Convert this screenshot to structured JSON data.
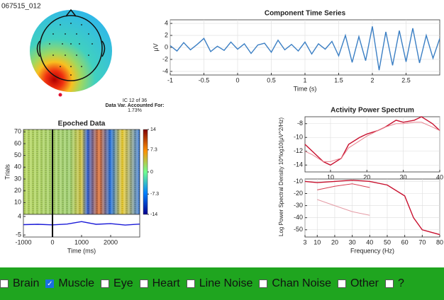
{
  "window": {
    "title": "067515_012"
  },
  "ic_info": {
    "lines": [
      "IC 12 of 36",
      "Data Var. Accounted For:",
      "1.73%"
    ]
  },
  "chart_data": [
    {
      "type": "line",
      "title": "Component Time Series",
      "xlabel": "Time (s)",
      "ylabel": "μV",
      "xlim": [
        -1,
        3
      ],
      "xticks": [
        -1,
        -0.5,
        0,
        0.5,
        1,
        1.5,
        2,
        2.5
      ],
      "ylim": [
        -4.6,
        4.6
      ],
      "yticks": [
        -4,
        -2,
        0,
        2,
        4
      ],
      "grid": true,
      "x": [
        -1,
        -0.9,
        -0.8,
        -0.7,
        -0.6,
        -0.5,
        -0.4,
        -0.3,
        -0.2,
        -0.1,
        0,
        0.1,
        0.2,
        0.3,
        0.4,
        0.5,
        0.6,
        0.7,
        0.8,
        0.9,
        1,
        1.1,
        1.2,
        1.3,
        1.4,
        1.5,
        1.6,
        1.7,
        1.8,
        1.9,
        2,
        2.1,
        2.2,
        2.3,
        2.4,
        2.5,
        2.6,
        2.7,
        2.8,
        2.9,
        3
      ],
      "series": [
        {
          "color": "#3b7fc4",
          "values": [
            0.3,
            -0.6,
            0.8,
            -0.4,
            0.5,
            1.5,
            -0.7,
            0.2,
            -0.5,
            0.9,
            -0.3,
            0.6,
            -1.0,
            0.4,
            0.7,
            -0.8,
            1.2,
            -0.4,
            0.5,
            -0.6,
            0.9,
            -1.1,
            0.6,
            -0.3,
            1.0,
            -1.4,
            2.0,
            -2.5,
            1.8,
            -2.2,
            3.5,
            -3.8,
            2.6,
            -3.0,
            2.8,
            -2.4,
            3.2,
            -2.6,
            2.0,
            -1.8,
            1.5
          ]
        }
      ]
    },
    {
      "type": "heatmap",
      "title": "Epoched Data",
      "ylabel": "Trials",
      "ylim": [
        0,
        72
      ],
      "yticks": [
        10,
        20,
        30,
        40,
        50,
        60,
        70
      ],
      "clim": [
        -14,
        14
      ],
      "cticks": [
        14,
        7.3,
        0,
        -7.3,
        -14
      ]
    },
    {
      "type": "line",
      "xlabel": "Time (ms)",
      "xlim": [
        -1000,
        3000
      ],
      "xticks": [
        -1000,
        0,
        1000,
        2000
      ],
      "ylim": [
        -6,
        5
      ],
      "yticks": [
        -5,
        4
      ],
      "x": [
        -1000,
        -500,
        0,
        500,
        1000,
        1500,
        2000,
        2500,
        3000
      ],
      "series": [
        {
          "color": "#1a1ad8",
          "values": [
            0,
            0.2,
            -0.1,
            0.3,
            1.5,
            0.2,
            0.5,
            -0.2,
            0.3
          ]
        }
      ]
    },
    {
      "type": "line",
      "title": "Activity Power Spectrum",
      "xlim": [
        3,
        40
      ],
      "xticks": [
        10,
        20,
        30,
        40
      ],
      "ylim": [
        -15,
        -7
      ],
      "yticks": [
        -8,
        -10,
        -12,
        -14
      ],
      "grid": true,
      "x": [
        3,
        5,
        8,
        10,
        13,
        15,
        18,
        20,
        23,
        25,
        28,
        30,
        33,
        35,
        38,
        40
      ],
      "series": [
        {
          "color": "#c8102e",
          "values": [
            -11,
            -12,
            -13.5,
            -14,
            -13,
            -11,
            -10,
            -9.5,
            -9,
            -8.5,
            -7.5,
            -7.8,
            -7.5,
            -7,
            -8,
            -9
          ]
        },
        {
          "color": "#e8838f",
          "values": [
            -12,
            -12.5,
            -13.5,
            -13.5,
            -13,
            -11.5,
            -10.5,
            -9.8,
            -9,
            -8.5,
            -8,
            -8,
            -7.8,
            -7.8,
            -8.5,
            -9
          ]
        }
      ]
    },
    {
      "type": "line",
      "xlabel": "Frequency (Hz)",
      "ylabel": "Log Power Spectral Density 10*log10(μV^2/Hz)",
      "xlim": [
        3,
        80
      ],
      "xticks": [
        3,
        10,
        20,
        30,
        40,
        50,
        60,
        70,
        80
      ],
      "ylim": [
        -56,
        -8
      ],
      "yticks": [
        -10,
        -20,
        -30,
        -40,
        -50
      ],
      "grid": true,
      "series": [
        {
          "color": "#c8102e",
          "x": [
            3,
            10,
            20,
            30,
            40,
            50,
            60,
            65,
            70,
            75,
            80
          ],
          "values": [
            -10,
            -11,
            -10,
            -9,
            -10,
            -13,
            -22,
            -40,
            -50,
            -52,
            -54
          ]
        },
        {
          "color": "#d83a4f",
          "x": [
            10,
            20,
            30,
            40
          ],
          "values": [
            -17,
            -14,
            -12,
            -15
          ]
        },
        {
          "color": "#e49aa4",
          "x": [
            10,
            20,
            30,
            40
          ],
          "values": [
            -25,
            -30,
            -35,
            -38
          ]
        }
      ]
    }
  ],
  "labels": {
    "checkboxes": [
      {
        "label": "Brain",
        "checked": false
      },
      {
        "label": "Muscle",
        "checked": true
      },
      {
        "label": "Eye",
        "checked": false
      },
      {
        "label": "Heart",
        "checked": false
      },
      {
        "label": "Line Noise",
        "checked": false
      },
      {
        "label": "Chan Noise",
        "checked": false
      },
      {
        "label": "Other",
        "checked": false
      },
      {
        "label": "?",
        "checked": false
      }
    ]
  }
}
